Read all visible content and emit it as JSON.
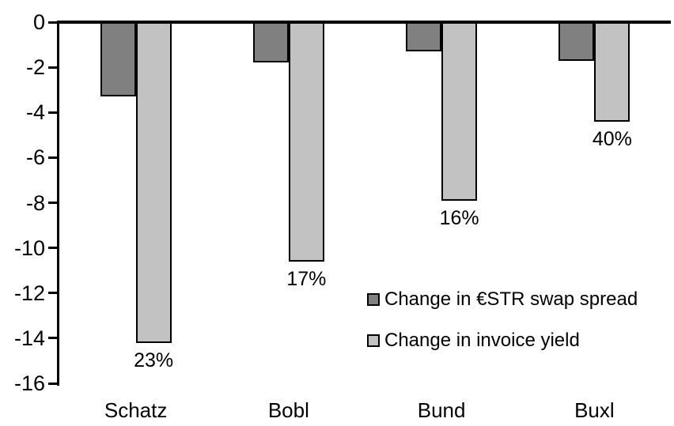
{
  "chart_data": {
    "type": "bar",
    "orientation": "vertical",
    "title": "",
    "xlabel": "",
    "ylabel": "",
    "categories": [
      "Schatz",
      "Bobl",
      "Bund",
      "Buxl"
    ],
    "series": [
      {
        "name": "Change in €STR swap spread",
        "color": "#808080",
        "values": [
          -3.3,
          -1.8,
          -1.3,
          -1.7
        ]
      },
      {
        "name": "Change in invoice yield",
        "color": "#c2c2c2",
        "values": [
          -14.2,
          -10.6,
          -7.9,
          -4.4
        ]
      }
    ],
    "bar_labels": {
      "series": "Change in invoice yield",
      "values": [
        "23%",
        "17%",
        "16%",
        "40%"
      ]
    },
    "yticks": [
      0,
      -2,
      -4,
      -6,
      -8,
      -10,
      -12,
      -14,
      -16
    ],
    "ylim": [
      0,
      -16
    ],
    "grid": false,
    "legend_position": "inside-right",
    "bar_border_color": "#000000",
    "axis_color": "#000000"
  }
}
